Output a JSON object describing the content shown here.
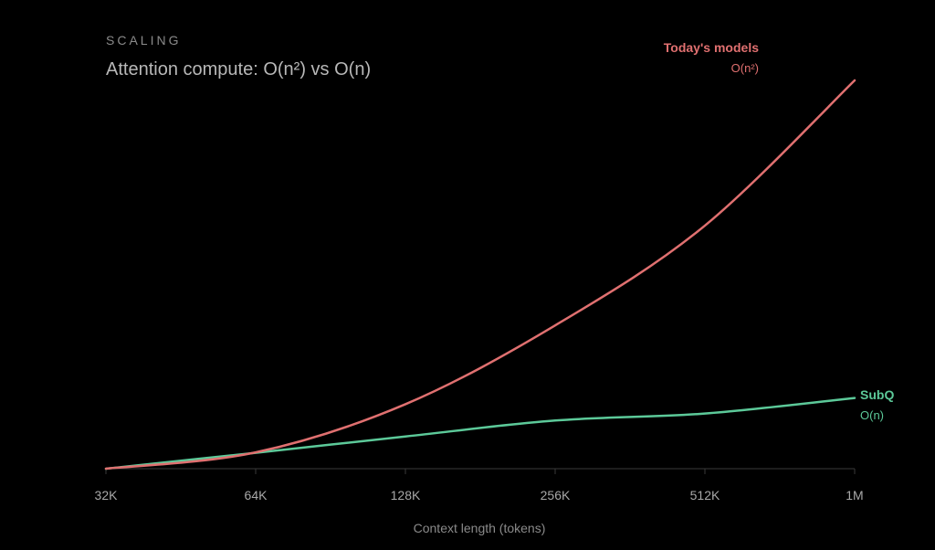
{
  "chart_data": {
    "type": "line",
    "eyebrow": "SCALING",
    "title": "Attention compute: O(n²) vs O(n)",
    "xlabel": "Context length (tokens)",
    "ylabel": "",
    "x_scale": "log2",
    "x": [
      32768,
      65536,
      131072,
      262144,
      524288,
      1048576
    ],
    "x_ticks": [
      "32K",
      "64K",
      "128K",
      "256K",
      "512K",
      "1M"
    ],
    "grid": false,
    "legend": "inline-right",
    "series": [
      {
        "name": "Today's models",
        "complexity": "O(n²)",
        "color": "#e07070",
        "values": [
          0.0,
          0.042,
          0.166,
          0.369,
          0.626,
          1.0
        ]
      },
      {
        "name": "SubQ",
        "complexity": "O(n)",
        "color": "#5cc999",
        "values": [
          0.0,
          0.041,
          0.083,
          0.124,
          0.142,
          0.182
        ]
      }
    ]
  }
}
